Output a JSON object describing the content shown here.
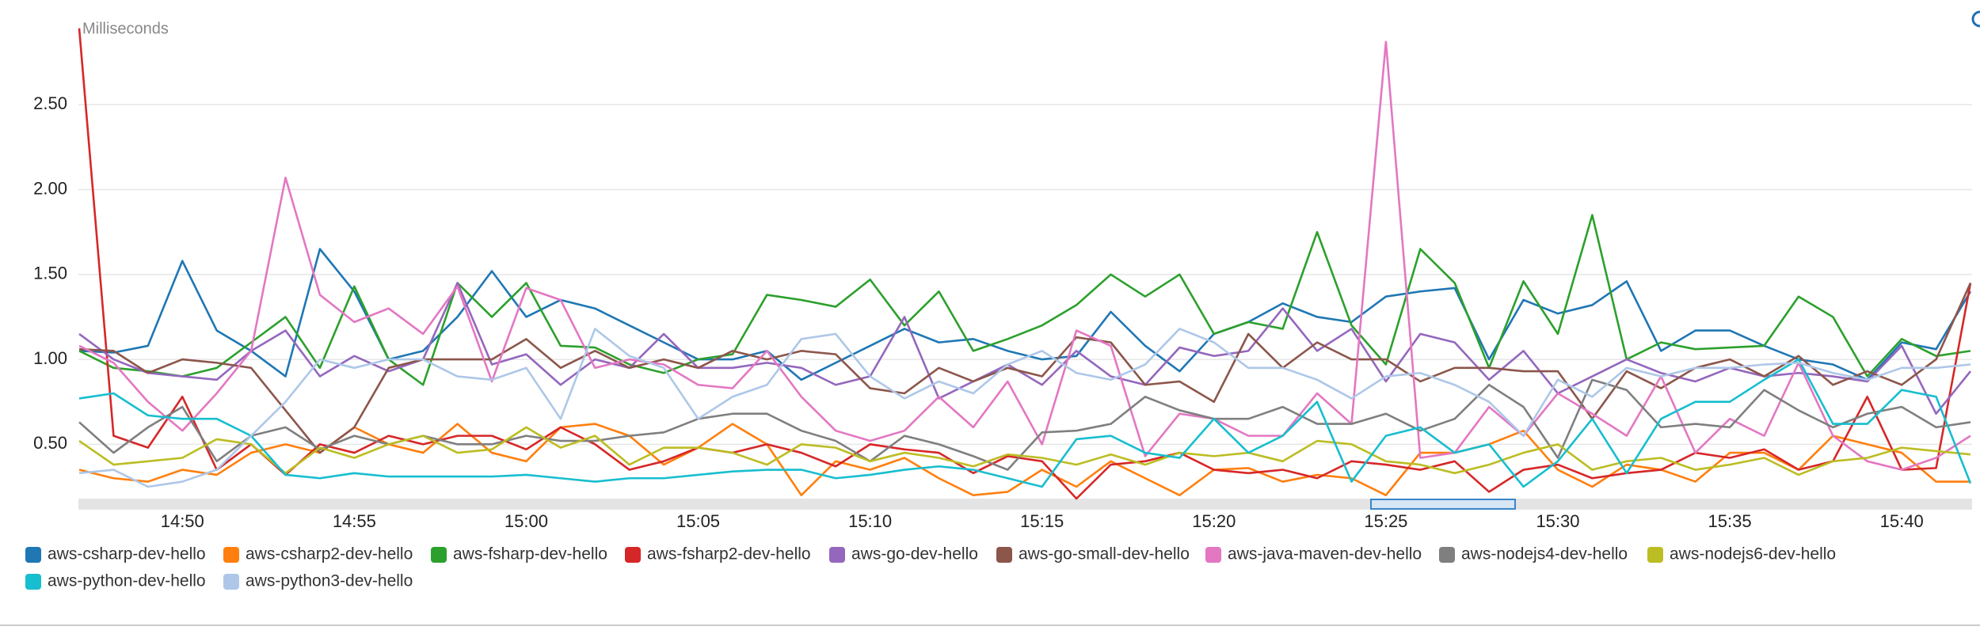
{
  "chart_data": {
    "type": "line",
    "y_label": "Milliseconds",
    "x": [
      "14:47",
      "14:48",
      "14:49",
      "14:50",
      "14:51",
      "14:52",
      "14:53",
      "14:54",
      "14:55",
      "14:56",
      "14:57",
      "14:58",
      "14:59",
      "15:00",
      "15:01",
      "15:02",
      "15:03",
      "15:04",
      "15:05",
      "15:06",
      "15:07",
      "15:08",
      "15:09",
      "15:10",
      "15:11",
      "15:12",
      "15:13",
      "15:14",
      "15:15",
      "15:16",
      "15:17",
      "15:18",
      "15:19",
      "15:20",
      "15:21",
      "15:22",
      "15:23",
      "15:24",
      "15:25",
      "15:26",
      "15:27",
      "15:28",
      "15:29",
      "15:30",
      "15:31",
      "15:32",
      "15:33",
      "15:34",
      "15:35",
      "15:36",
      "15:37",
      "15:38",
      "15:39",
      "15:40",
      "15:41",
      "15:42"
    ],
    "xticks": [
      "14:50",
      "14:55",
      "15:00",
      "15:05",
      "15:10",
      "15:15",
      "15:20",
      "15:25",
      "15:30",
      "15:35",
      "15:40"
    ],
    "ylim": [
      0.18,
      3.0
    ],
    "yticks": [
      {
        "value": 0.5,
        "label": "0.50"
      },
      {
        "value": 1.0,
        "label": "1.00"
      },
      {
        "value": 1.5,
        "label": "1.50"
      },
      {
        "value": 2.0,
        "label": "2.00"
      },
      {
        "value": 2.5,
        "label": "2.50"
      }
    ],
    "grid": true,
    "legend": "bottom",
    "series": [
      {
        "name": "aws-csharp-dev-hello",
        "color": "#1f77b4",
        "values": [
          1.05,
          1.04,
          1.08,
          1.58,
          1.17,
          1.05,
          0.9,
          1.65,
          1.4,
          1.0,
          1.05,
          1.25,
          1.52,
          1.25,
          1.35,
          1.3,
          1.2,
          1.1,
          1.0,
          1.0,
          1.05,
          0.88,
          0.98,
          1.08,
          1.18,
          1.1,
          1.12,
          1.05,
          1.0,
          1.02,
          1.28,
          1.08,
          0.93,
          1.15,
          1.22,
          1.33,
          1.25,
          1.22,
          1.37,
          1.4,
          1.42,
          1.0,
          1.35,
          1.27,
          1.32,
          1.46,
          1.05,
          1.17,
          1.17,
          1.08,
          1.0,
          0.97,
          0.88,
          1.1,
          1.06,
          1.4
        ]
      },
      {
        "name": "aws-csharp2-dev-hello",
        "color": "#ff7f0e",
        "values": [
          0.35,
          0.3,
          0.28,
          0.35,
          0.32,
          0.45,
          0.5,
          0.45,
          0.6,
          0.5,
          0.45,
          0.62,
          0.45,
          0.4,
          0.6,
          0.62,
          0.55,
          0.38,
          0.48,
          0.62,
          0.5,
          0.2,
          0.4,
          0.35,
          0.42,
          0.3,
          0.2,
          0.22,
          0.35,
          0.25,
          0.4,
          0.3,
          0.2,
          0.35,
          0.36,
          0.28,
          0.32,
          0.3,
          0.2,
          0.45,
          0.45,
          0.5,
          0.58,
          0.35,
          0.25,
          0.38,
          0.35,
          0.28,
          0.45,
          0.45,
          0.35,
          0.55,
          0.5,
          0.45,
          0.28,
          0.28
        ]
      },
      {
        "name": "aws-fsharp-dev-hello",
        "color": "#2ca02c",
        "values": [
          1.05,
          0.95,
          0.93,
          0.9,
          0.95,
          1.1,
          1.25,
          0.95,
          1.43,
          1.0,
          0.85,
          1.45,
          1.25,
          1.45,
          1.08,
          1.07,
          0.97,
          0.92,
          1.0,
          1.03,
          1.38,
          1.35,
          1.31,
          1.47,
          1.2,
          1.4,
          1.05,
          1.12,
          1.2,
          1.32,
          1.5,
          1.37,
          1.5,
          1.15,
          1.22,
          1.18,
          1.75,
          1.2,
          0.97,
          1.65,
          1.45,
          0.95,
          1.46,
          1.15,
          1.85,
          1.0,
          1.1,
          1.06,
          1.07,
          1.08,
          1.37,
          1.25,
          0.9,
          1.12,
          1.02,
          1.05
        ]
      },
      {
        "name": "aws-fsharp2-dev-hello",
        "color": "#d62728",
        "values": [
          2.95,
          0.55,
          0.48,
          0.78,
          0.35,
          0.5,
          0.32,
          0.5,
          0.45,
          0.55,
          0.5,
          0.55,
          0.55,
          0.47,
          0.6,
          0.5,
          0.35,
          0.4,
          0.48,
          0.45,
          0.5,
          0.45,
          0.37,
          0.5,
          0.47,
          0.45,
          0.33,
          0.43,
          0.4,
          0.18,
          0.38,
          0.4,
          0.45,
          0.35,
          0.33,
          0.35,
          0.3,
          0.4,
          0.38,
          0.35,
          0.4,
          0.22,
          0.35,
          0.38,
          0.3,
          0.33,
          0.35,
          0.45,
          0.42,
          0.47,
          0.35,
          0.4,
          0.78,
          0.35,
          0.36,
          1.45
        ]
      },
      {
        "name": "aws-go-dev-hello",
        "color": "#9467bd",
        "values": [
          1.15,
          1.0,
          0.92,
          0.9,
          0.88,
          1.05,
          1.17,
          0.9,
          1.02,
          0.93,
          1.0,
          1.45,
          0.97,
          1.03,
          0.85,
          1.0,
          0.95,
          1.15,
          0.95,
          0.95,
          0.98,
          0.95,
          0.85,
          0.9,
          1.25,
          0.77,
          0.87,
          0.97,
          0.85,
          1.05,
          0.9,
          0.85,
          1.07,
          1.02,
          1.05,
          1.3,
          1.05,
          1.18,
          0.87,
          1.15,
          1.1,
          0.88,
          1.05,
          0.8,
          0.9,
          1.0,
          0.92,
          0.87,
          0.95,
          0.9,
          0.92,
          0.9,
          0.87,
          1.08,
          0.68,
          0.93
        ]
      },
      {
        "name": "aws-go-small-dev-hello",
        "color": "#8c564b",
        "values": [
          1.06,
          1.05,
          0.92,
          1.0,
          0.98,
          0.95,
          0.7,
          0.45,
          0.6,
          0.95,
          1.0,
          1.0,
          1.0,
          1.12,
          0.95,
          1.05,
          0.95,
          1.0,
          0.95,
          1.05,
          1.0,
          1.05,
          1.03,
          0.83,
          0.8,
          0.95,
          0.87,
          0.95,
          0.9,
          1.13,
          1.1,
          0.85,
          0.87,
          0.75,
          1.15,
          0.95,
          1.1,
          1.0,
          1.0,
          0.87,
          0.95,
          0.95,
          0.93,
          0.93,
          0.65,
          0.93,
          0.83,
          0.95,
          1.0,
          0.9,
          1.02,
          0.85,
          0.93,
          0.85,
          1.0,
          1.45
        ]
      },
      {
        "name": "aws-java-maven-dev-hello",
        "color": "#e377c2",
        "values": [
          1.08,
          0.98,
          0.75,
          0.58,
          0.8,
          1.05,
          2.07,
          1.38,
          1.22,
          1.3,
          1.15,
          1.43,
          0.87,
          1.42,
          1.35,
          0.95,
          1.0,
          0.97,
          0.85,
          0.83,
          1.05,
          0.78,
          0.58,
          0.52,
          0.58,
          0.78,
          0.6,
          0.87,
          0.5,
          1.17,
          1.08,
          0.43,
          0.68,
          0.65,
          0.55,
          0.55,
          0.8,
          0.62,
          2.87,
          0.42,
          0.45,
          0.72,
          0.55,
          0.8,
          0.68,
          0.55,
          0.9,
          0.45,
          0.65,
          0.55,
          0.98,
          0.55,
          0.4,
          0.35,
          0.42,
          0.55
        ]
      },
      {
        "name": "aws-nodejs4-dev-hello",
        "color": "#7f7f7f",
        "values": [
          0.63,
          0.45,
          0.6,
          0.72,
          0.4,
          0.55,
          0.6,
          0.47,
          0.55,
          0.5,
          0.55,
          0.5,
          0.5,
          0.55,
          0.52,
          0.52,
          0.55,
          0.57,
          0.65,
          0.68,
          0.68,
          0.58,
          0.52,
          0.4,
          0.55,
          0.5,
          0.43,
          0.35,
          0.57,
          0.58,
          0.62,
          0.78,
          0.7,
          0.65,
          0.65,
          0.72,
          0.62,
          0.62,
          0.68,
          0.58,
          0.65,
          0.85,
          0.72,
          0.42,
          0.88,
          0.82,
          0.6,
          0.62,
          0.6,
          0.82,
          0.7,
          0.6,
          0.68,
          0.72,
          0.6,
          0.63
        ]
      },
      {
        "name": "aws-nodejs6-dev-hello",
        "color": "#bcbd22",
        "values": [
          0.52,
          0.38,
          0.4,
          0.42,
          0.53,
          0.5,
          0.33,
          0.48,
          0.42,
          0.5,
          0.55,
          0.45,
          0.47,
          0.6,
          0.48,
          0.55,
          0.38,
          0.48,
          0.48,
          0.45,
          0.38,
          0.5,
          0.48,
          0.4,
          0.45,
          0.42,
          0.37,
          0.44,
          0.42,
          0.38,
          0.44,
          0.38,
          0.45,
          0.43,
          0.45,
          0.4,
          0.52,
          0.5,
          0.4,
          0.38,
          0.33,
          0.38,
          0.45,
          0.5,
          0.35,
          0.4,
          0.42,
          0.35,
          0.38,
          0.42,
          0.32,
          0.4,
          0.42,
          0.48,
          0.46,
          0.44
        ]
      },
      {
        "name": "aws-python-dev-hello",
        "color": "#17becf",
        "values": [
          0.77,
          0.8,
          0.67,
          0.65,
          0.65,
          0.55,
          0.32,
          0.3,
          0.33,
          0.31,
          0.31,
          0.31,
          0.31,
          0.32,
          0.3,
          0.28,
          0.3,
          0.3,
          0.32,
          0.34,
          0.35,
          0.35,
          0.3,
          0.32,
          0.35,
          0.37,
          0.35,
          0.3,
          0.25,
          0.53,
          0.55,
          0.45,
          0.42,
          0.65,
          0.45,
          0.55,
          0.75,
          0.28,
          0.55,
          0.6,
          0.45,
          0.5,
          0.25,
          0.4,
          0.65,
          0.33,
          0.65,
          0.75,
          0.75,
          0.88,
          1.0,
          0.62,
          0.62,
          0.82,
          0.78,
          0.27
        ]
      },
      {
        "name": "aws-python3-dev-hello",
        "color": "#aec7e8",
        "values": [
          0.33,
          0.35,
          0.25,
          0.28,
          0.35,
          0.55,
          0.75,
          1.0,
          0.95,
          1.0,
          1.0,
          0.9,
          0.88,
          0.95,
          0.65,
          1.18,
          1.02,
          0.95,
          0.65,
          0.78,
          0.85,
          1.12,
          1.15,
          0.9,
          0.77,
          0.87,
          0.8,
          0.97,
          1.05,
          0.92,
          0.88,
          0.97,
          1.18,
          1.1,
          0.95,
          0.95,
          0.88,
          0.77,
          0.9,
          0.92,
          0.85,
          0.75,
          0.55,
          0.88,
          0.78,
          0.95,
          0.9,
          0.95,
          0.95,
          0.97,
          0.98,
          0.92,
          0.88,
          0.95,
          0.95,
          0.97
        ]
      }
    ]
  }
}
